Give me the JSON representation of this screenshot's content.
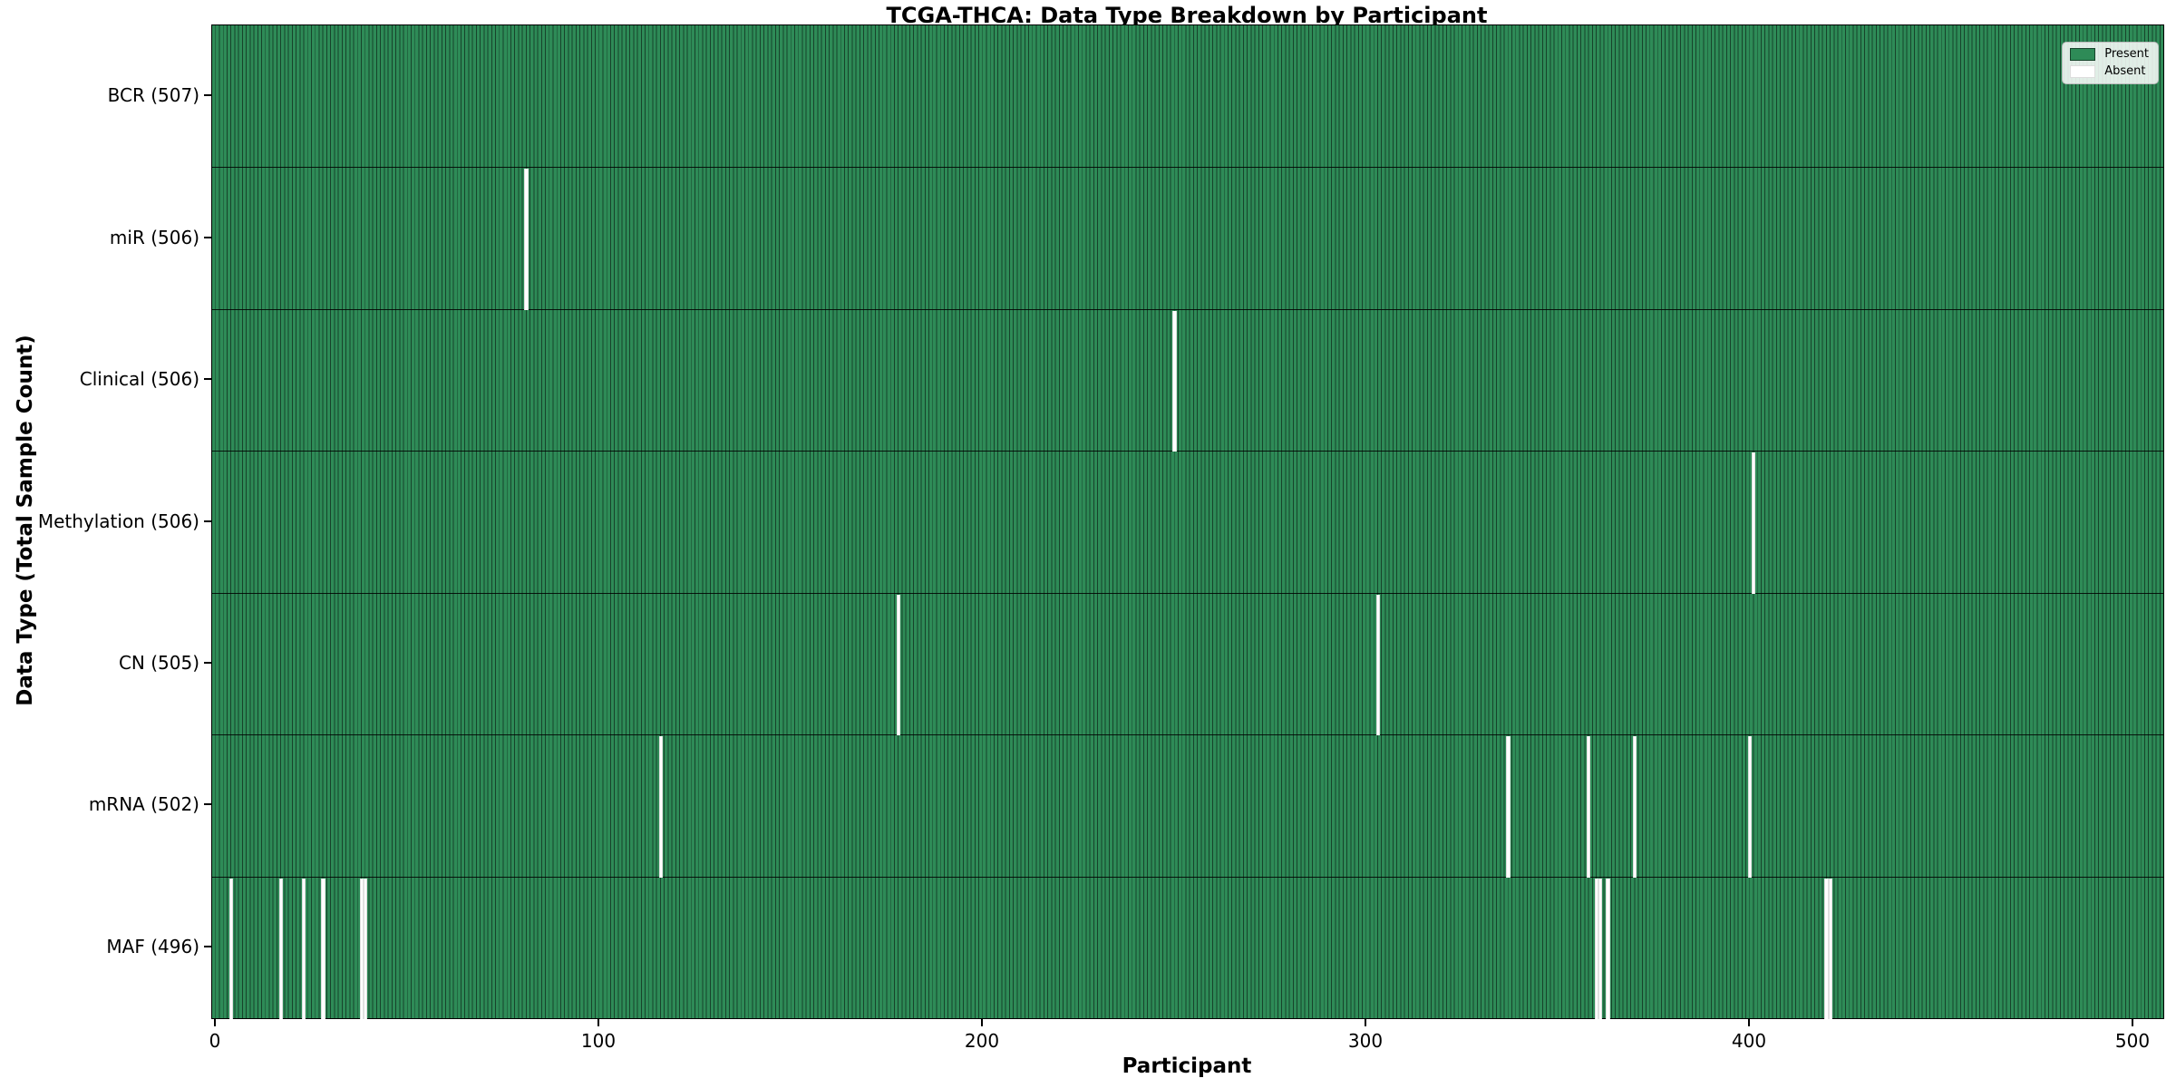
{
  "title": "TCGA-THCA: Data Type Breakdown by Participant",
  "xlabel": "Participant",
  "ylabel": "Data Type (Total Sample Count)",
  "legend": {
    "present_label": "Present",
    "absent_label": "Absent"
  },
  "colors": {
    "present": "#2e8b57",
    "present_edge": "#17432b",
    "absent": "#ffffff",
    "plot_border": "#000000",
    "row_separator": "#111111"
  },
  "chart_data": {
    "type": "heatmap",
    "title": "TCGA-THCA: Data Type Breakdown by Participant",
    "xlabel": "Participant",
    "ylabel": "Data Type (Total Sample Count)",
    "legend": [
      "Present",
      "Absent"
    ],
    "legend_position": "upper right",
    "grid": false,
    "n_participants": 507,
    "x_ticks": [
      0,
      100,
      200,
      300,
      400,
      500
    ],
    "x_range": [
      0,
      507
    ],
    "rows": [
      {
        "label": "BCR (507)",
        "data_type": "BCR",
        "total": 507,
        "absent_participants": []
      },
      {
        "label": "miR (506)",
        "data_type": "miR",
        "total": 506,
        "absent_participants": [
          81
        ]
      },
      {
        "label": "Clinical (506)",
        "data_type": "Clinical",
        "total": 506,
        "absent_participants": [
          250
        ]
      },
      {
        "label": "Methylation (506)",
        "data_type": "Methylation",
        "total": 506,
        "absent_participants": [
          401
        ]
      },
      {
        "label": "CN (505)",
        "data_type": "CN",
        "total": 505,
        "absent_participants": [
          178,
          303
        ]
      },
      {
        "label": "mRNA (502)",
        "data_type": "mRNA",
        "total": 502,
        "absent_participants": [
          116,
          337,
          358,
          370,
          400
        ]
      },
      {
        "label": "MAF (496)",
        "data_type": "MAF",
        "total": 496,
        "absent_participants": [
          4,
          17,
          23,
          28,
          38,
          39,
          360,
          361,
          363,
          420,
          421
        ]
      }
    ]
  }
}
